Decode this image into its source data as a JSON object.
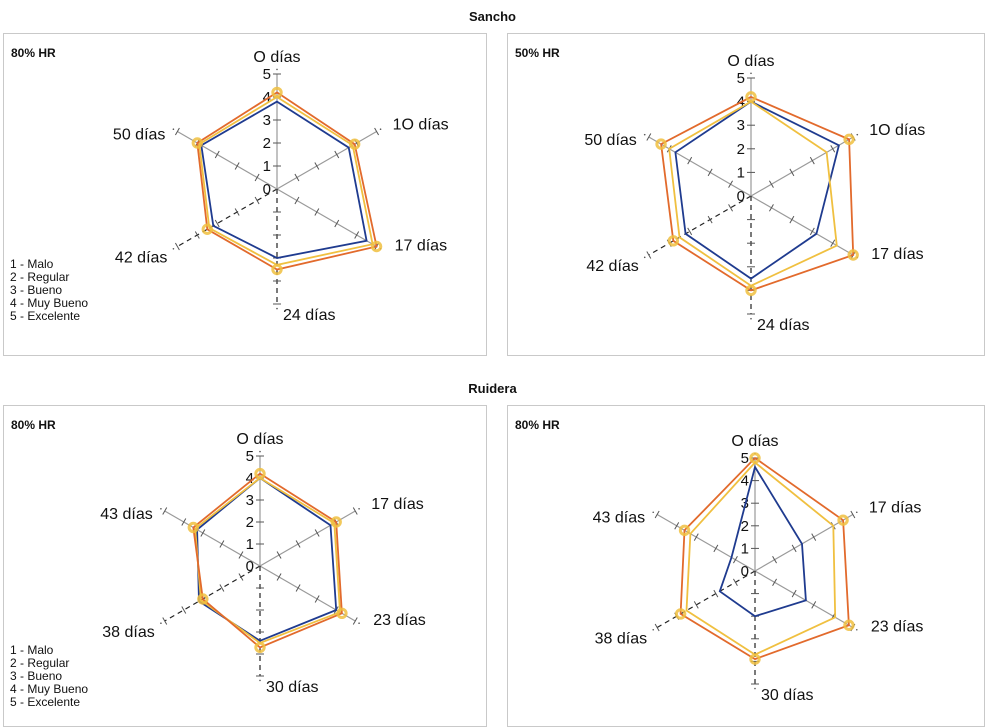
{
  "groups": [
    {
      "title": "Sancho"
    },
    {
      "title": "Ruidera"
    }
  ],
  "legend": [
    "1 - Malo",
    "2 - Regular",
    "3 - Bueno",
    "4 - Muy Bueno",
    "5 - Excelente"
  ],
  "colors": {
    "series_a": "#1f3b8f",
    "series_b": "#f0c040",
    "series_c": "#e26a2c",
    "axis": "#9a9a9a",
    "spoke_dark": "#222222",
    "grid_dark": "#111111"
  },
  "chart_data": [
    {
      "type": "radar",
      "group": "Sancho",
      "title": "80% HR",
      "axes": [
        "O días",
        "1O días",
        "17 días",
        "24 días",
        "42 días",
        "50 días"
      ],
      "ticks": [
        "0",
        "1",
        "2",
        "3",
        "4",
        "5"
      ],
      "range": [
        0,
        5
      ],
      "series": [
        {
          "values": [
            3.8,
            3.6,
            4.5,
            3.0,
            3.2,
            3.8
          ],
          "color": "#1f3b8f"
        },
        {
          "values": [
            4.0,
            3.8,
            4.8,
            3.3,
            3.4,
            3.9
          ],
          "color": "#f0c040"
        },
        {
          "values": [
            4.2,
            3.9,
            5.0,
            3.5,
            3.5,
            4.0
          ],
          "color": "#e26a2c"
        }
      ]
    },
    {
      "type": "radar",
      "group": "Sancho",
      "title": "50% HR",
      "axes": [
        "O días",
        "1O días",
        "17 días",
        "24 días",
        "42 días",
        "50 días"
      ],
      "ticks": [
        "0",
        "1",
        "2",
        "3",
        "4",
        "5"
      ],
      "range": [
        0,
        5
      ],
      "series": [
        {
          "values": [
            4.0,
            4.3,
            3.2,
            3.5,
            3.2,
            3.7
          ],
          "color": "#1f3b8f"
        },
        {
          "values": [
            4.0,
            3.7,
            4.2,
            3.8,
            3.5,
            4.0
          ],
          "color": "#f0c040"
        },
        {
          "values": [
            4.2,
            4.8,
            5.0,
            4.0,
            3.8,
            4.4
          ],
          "color": "#e26a2c"
        }
      ]
    },
    {
      "type": "radar",
      "group": "Ruidera",
      "title": "80% HR",
      "axes": [
        "O días",
        "17 días",
        "23 días",
        "30 días",
        "38 días",
        "43 días"
      ],
      "ticks": [
        "0",
        "1",
        "2",
        "3",
        "4",
        "5"
      ],
      "range": [
        0,
        5
      ],
      "series": [
        {
          "values": [
            4.0,
            3.7,
            4.0,
            3.4,
            3.2,
            3.3
          ],
          "color": "#1f3b8f"
        },
        {
          "values": [
            4.0,
            3.9,
            4.2,
            3.5,
            3.1,
            3.4
          ],
          "color": "#f0c040"
        },
        {
          "values": [
            4.2,
            4.0,
            4.3,
            3.7,
            3.0,
            3.5
          ],
          "color": "#e26a2c"
        }
      ]
    },
    {
      "type": "radar",
      "group": "Ruidera",
      "title": "80% HR",
      "axes": [
        "O días",
        "17 días",
        "23 días",
        "30 días",
        "38 días",
        "43 días"
      ],
      "ticks": [
        "0",
        "1",
        "2",
        "3",
        "4",
        "5"
      ],
      "range": [
        0,
        5
      ],
      "series": [
        {
          "values": [
            4.6,
            2.4,
            2.6,
            2.0,
            1.8,
            1.2
          ],
          "color": "#1f3b8f"
        },
        {
          "values": [
            4.8,
            4.0,
            4.1,
            3.7,
            3.5,
            3.3
          ],
          "color": "#f0c040"
        },
        {
          "values": [
            5.0,
            4.5,
            4.8,
            3.9,
            3.8,
            3.6
          ],
          "color": "#e26a2c"
        }
      ]
    }
  ]
}
